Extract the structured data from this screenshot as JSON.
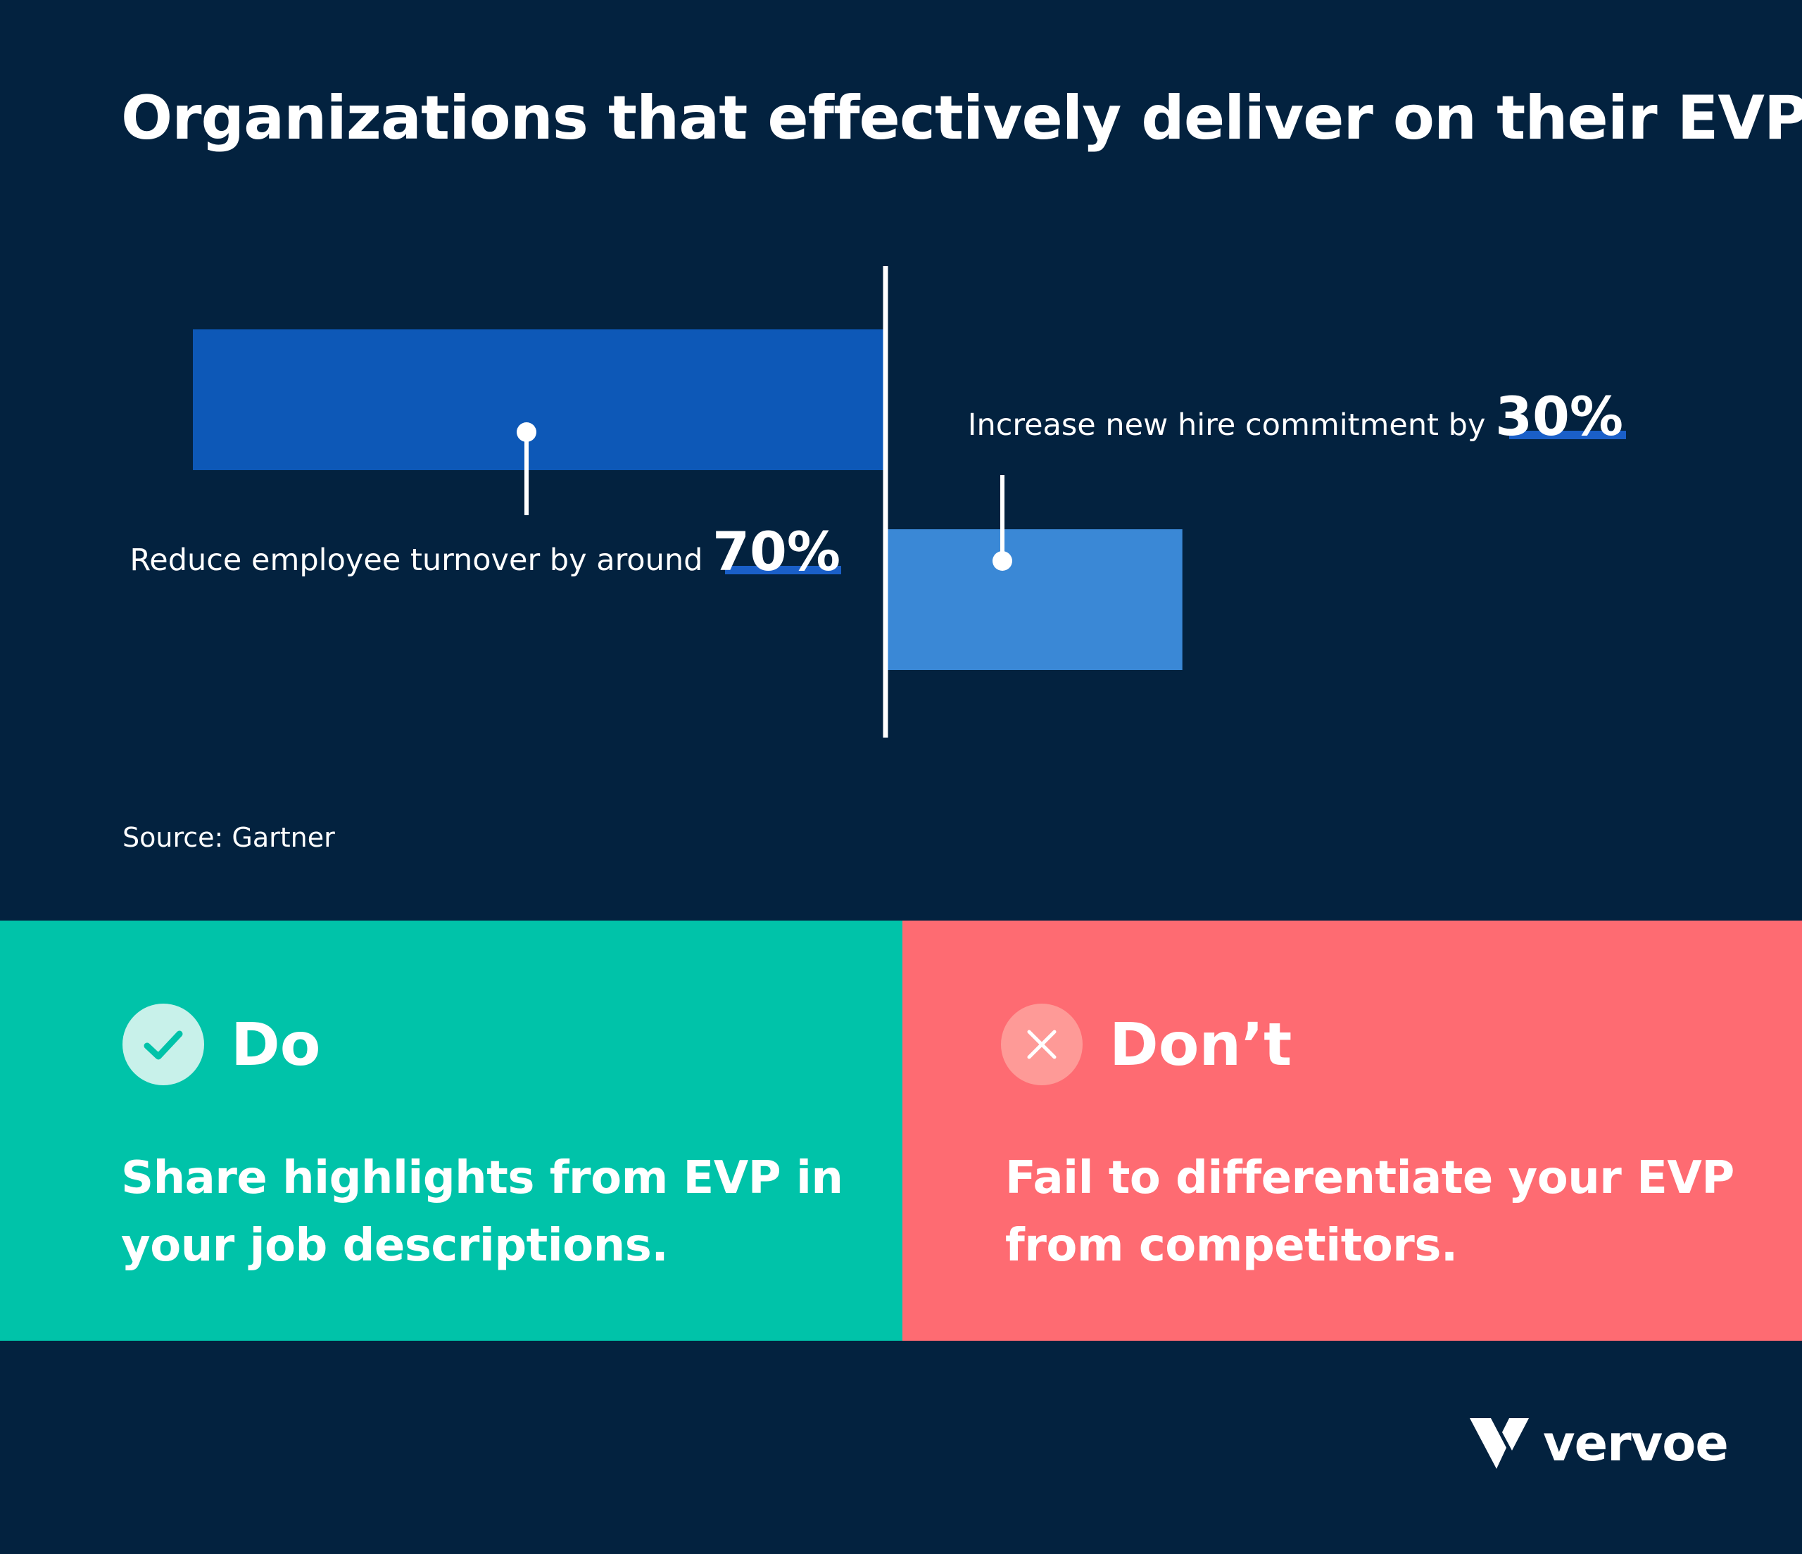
{
  "title": "Organizations that effectively deliver on their EVP",
  "chart_data": {
    "type": "bar",
    "orientation": "horizontal-diverging",
    "series": [
      {
        "label_prefix": "Reduce employee turnover by around",
        "value_label": "70%",
        "value": 70,
        "direction": "left",
        "color": "#0d58b7"
      },
      {
        "label_prefix": "Increase new hire commitment by",
        "value_label": "30%",
        "value": 30,
        "direction": "right",
        "color": "#3a88d6"
      }
    ]
  },
  "source": "Source: Gartner",
  "do": {
    "title": "Do",
    "text": "Share highlights from EVP in your job descriptions.",
    "bg_color": "#00c3a9",
    "icon": "check-icon"
  },
  "dont": {
    "title": "Don’t",
    "text": "Fail to differentiate your EVP from competitors.",
    "bg_color": "#fe6b72",
    "icon": "close-icon"
  },
  "brand": {
    "name": "vervoe",
    "icon": "vervoe-logo-icon"
  },
  "colors": {
    "background": "#03223f",
    "underline": "#1a5fc8"
  }
}
